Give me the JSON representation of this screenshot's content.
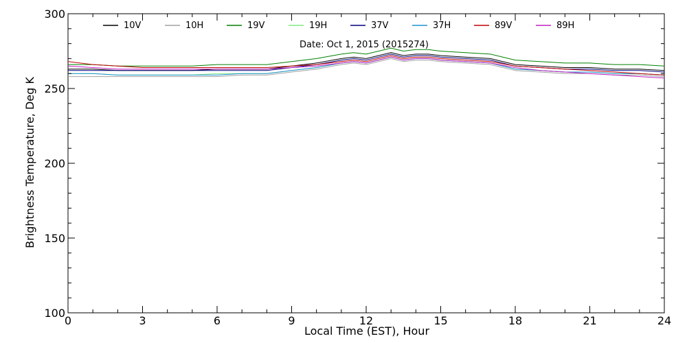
{
  "chart_data": {
    "type": "line",
    "title": "",
    "annotation": "Date: Oct  1, 2015 (2015274)",
    "xlabel": "Local Time (EST), Hour",
    "ylabel": "Brightness Temperature, Deg K",
    "xlim": [
      0,
      24
    ],
    "ylim": [
      100,
      300
    ],
    "xticks": [
      0,
      3,
      6,
      9,
      12,
      15,
      18,
      21,
      24
    ],
    "yticks": [
      100,
      150,
      200,
      250,
      300
    ],
    "xtick_labels": [
      "0",
      "3",
      "6",
      "9",
      "12",
      "15",
      "18",
      "21",
      "24"
    ],
    "ytick_labels": [
      "100",
      "150",
      "200",
      "250",
      "300"
    ],
    "grid": false,
    "legend_position": "top",
    "x": [
      0,
      1,
      2,
      3,
      4,
      5,
      6,
      7,
      8,
      9,
      10,
      11,
      11.5,
      12,
      12.5,
      13,
      13.5,
      14,
      14.5,
      15,
      16,
      17,
      18,
      19,
      20,
      21,
      22,
      23,
      24
    ],
    "series": [
      {
        "name": "10V",
        "color": "#000000",
        "values": [
          263,
          263,
          262,
          262,
          262,
          262,
          263,
          263,
          263,
          265,
          267,
          270,
          271,
          270,
          272,
          274,
          272,
          273,
          273,
          272,
          271,
          270,
          266,
          265,
          264,
          264,
          263,
          263,
          262
        ]
      },
      {
        "name": "10H",
        "color": "#a0a0a0",
        "values": [
          258,
          258,
          258,
          258,
          258,
          258,
          258,
          259,
          259,
          261,
          263,
          266,
          267,
          266,
          268,
          270,
          268,
          269,
          269,
          268,
          267,
          266,
          262,
          261,
          260,
          260,
          259,
          259,
          258
        ]
      },
      {
        "name": "19V",
        "color": "#008000",
        "values": [
          266,
          266,
          265,
          265,
          265,
          265,
          266,
          266,
          266,
          268,
          270,
          273,
          274,
          273,
          275,
          277,
          275,
          276,
          276,
          275,
          274,
          273,
          269,
          268,
          267,
          267,
          266,
          266,
          265
        ]
      },
      {
        "name": "19H",
        "color": "#80e880",
        "values": [
          260,
          260,
          259,
          259,
          259,
          259,
          260,
          260,
          260,
          262,
          264,
          267,
          268,
          267,
          269,
          271,
          269,
          270,
          270,
          269,
          268,
          267,
          263,
          262,
          261,
          261,
          260,
          260,
          259
        ]
      },
      {
        "name": "37V",
        "color": "#000080",
        "values": [
          262,
          262,
          262,
          262,
          262,
          262,
          262,
          262,
          262,
          264,
          266,
          269,
          270,
          269,
          271,
          273,
          271,
          272,
          272,
          271,
          270,
          269,
          265,
          264,
          263,
          263,
          262,
          262,
          261
        ]
      },
      {
        "name": "37H",
        "color": "#1e90d0",
        "values": [
          260,
          260,
          259,
          259,
          259,
          259,
          259,
          260,
          260,
          262,
          264,
          267,
          268,
          267,
          269,
          271,
          269,
          270,
          270,
          269,
          268,
          267,
          263,
          262,
          261,
          261,
          260,
          260,
          259
        ]
      },
      {
        "name": "89V",
        "color": "#c00000",
        "values": [
          268,
          266,
          265,
          264,
          264,
          264,
          264,
          264,
          264,
          265,
          266,
          268,
          269,
          268,
          270,
          272,
          270,
          271,
          271,
          270,
          269,
          268,
          265,
          264,
          263,
          262,
          261,
          260,
          259
        ]
      },
      {
        "name": "89H",
        "color": "#c020c0",
        "values": [
          265,
          264,
          263,
          263,
          263,
          263,
          263,
          263,
          263,
          264,
          265,
          267,
          268,
          267,
          269,
          271,
          269,
          270,
          270,
          269,
          268,
          267,
          264,
          262,
          261,
          260,
          259,
          258,
          257
        ]
      }
    ]
  }
}
